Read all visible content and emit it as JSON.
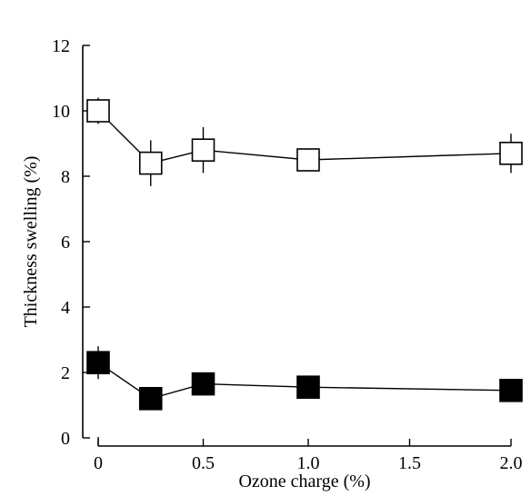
{
  "chart_data": {
    "type": "line",
    "title": "",
    "xlabel": "Ozone charge (%)",
    "ylabel": "Thickness swelling (%)",
    "xlim": [
      0,
      2.0
    ],
    "ylim": [
      0,
      12
    ],
    "x_break": [
      1.0,
      2.0
    ],
    "x_tick_labels": [
      "0",
      "0.5",
      "1.0",
      "1.5",
      "2.0"
    ],
    "y_tick_labels": [
      "0",
      "2",
      "4",
      "6",
      "8",
      "10",
      "12"
    ],
    "grid": false,
    "series": [
      {
        "marker": "open-square",
        "x": [
          0,
          0.25,
          0.5,
          1.0,
          2.0
        ],
        "y": [
          10.0,
          8.4,
          8.8,
          8.5,
          8.7
        ],
        "err": [
          0.4,
          0.7,
          0.7,
          0.3,
          0.6
        ]
      },
      {
        "marker": "filled-square",
        "x": [
          0,
          0.25,
          0.5,
          1.0,
          2.0
        ],
        "y": [
          2.3,
          1.2,
          1.65,
          1.55,
          1.45
        ],
        "err": [
          0.5,
          0.2,
          0.2,
          0.2,
          0.2
        ]
      }
    ]
  },
  "colors": {
    "axis": "#000000",
    "open_marker_fill": "#ffffff",
    "filled_marker_fill": "#000000"
  }
}
